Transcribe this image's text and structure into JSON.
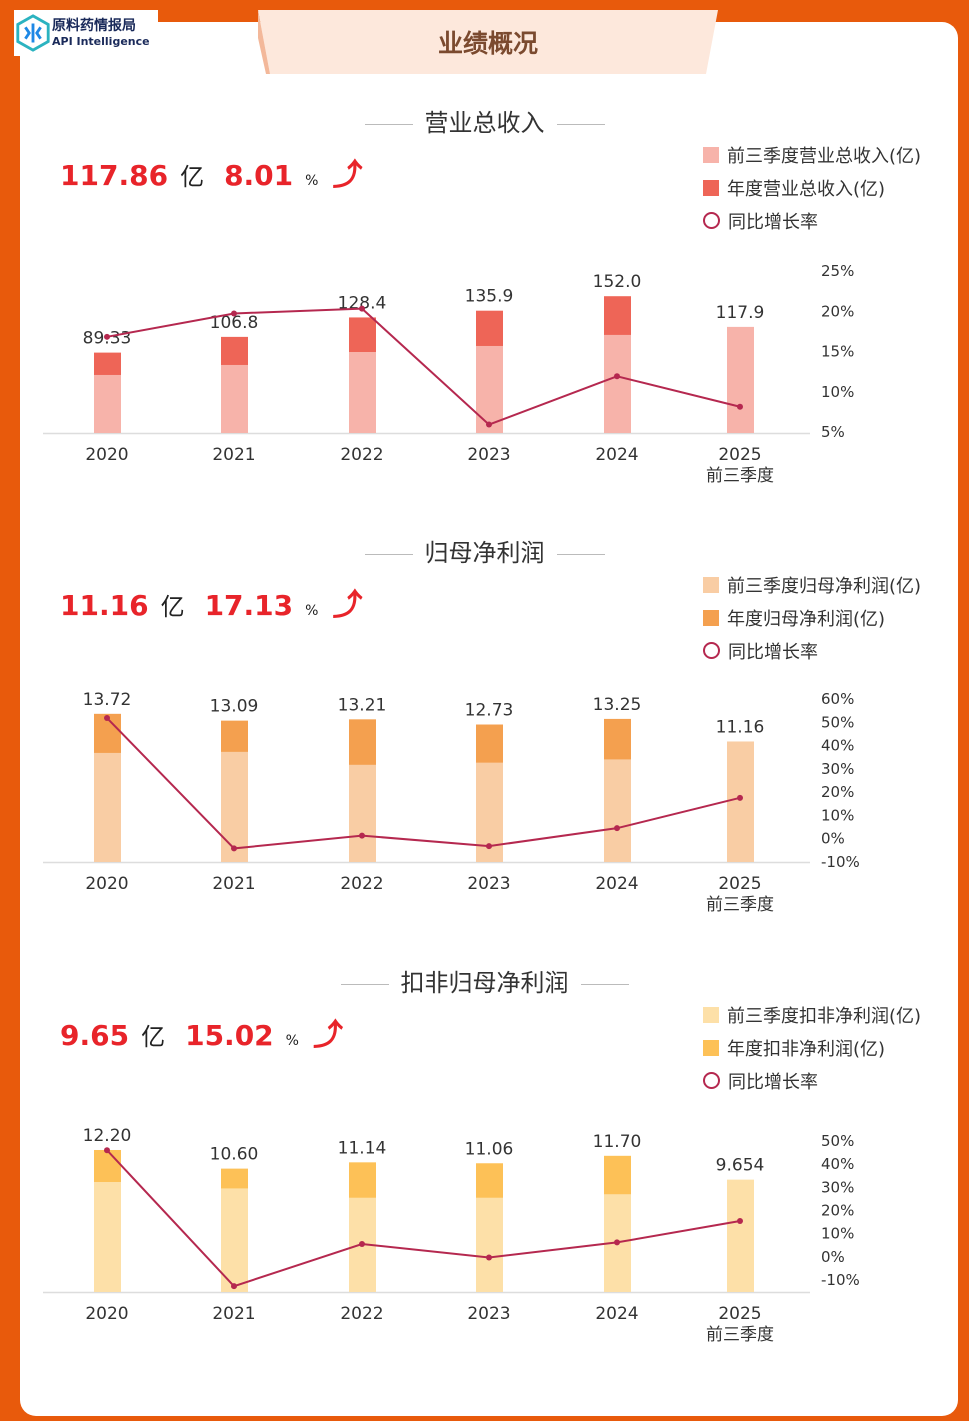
{
  "logo": {
    "name_cn": "原料药情报局",
    "name_en": "API Intelligence"
  },
  "header": {
    "title": "业绩概况"
  },
  "colors": {
    "line": "#b5284f",
    "highlight": "#e8242a"
  },
  "sections": [
    {
      "title": "营业总收入",
      "value": "117.86",
      "value_unit": "亿",
      "growth": "8.01",
      "growth_unit": "%",
      "trend_icon": "arrow-up-icon",
      "legend": [
        "前三季度营业总收入(亿)",
        "年度营业总收入(亿)",
        "同比增长率"
      ]
    },
    {
      "title": "归母净利润",
      "value": "11.16",
      "value_unit": "亿",
      "growth": "17.13",
      "growth_unit": "%",
      "trend_icon": "arrow-up-icon",
      "legend": [
        "前三季度归母净利润(亿)",
        "年度归母净利润(亿)",
        "同比增长率"
      ]
    },
    {
      "title": "扣非归母净利润",
      "value": "9.65",
      "value_unit": "亿",
      "growth": "15.02",
      "growth_unit": "%",
      "trend_icon": "arrow-up-icon",
      "legend": [
        "前三季度扣非净利润(亿)",
        "年度扣非净利润(亿)",
        "同比增长率"
      ]
    }
  ],
  "chart_data": [
    {
      "type": "bar",
      "categories": [
        "2020",
        "2021",
        "2022",
        "2023",
        "2024",
        "2025"
      ],
      "category_sublabels": [
        "",
        "",
        "",
        "",
        "",
        "前三季度"
      ],
      "colors": {
        "q3": "#f7b3aa",
        "annual": "#ee6557"
      },
      "series": [
        {
          "name": "前三季度营业总收入(亿)",
          "values": [
            64.5,
            75.6,
            90.0,
            96.7,
            109.0,
            117.9
          ]
        },
        {
          "name": "年度营业总收入(亿)",
          "values": [
            89.33,
            106.8,
            128.4,
            135.9,
            152.0,
            null
          ]
        },
        {
          "name": "同比增长率",
          "type": "line",
          "axis": "right",
          "values": [
            16.7,
            19.6,
            20.2,
            5.8,
            11.8,
            8.01
          ]
        }
      ],
      "data_labels": [
        "89.33",
        "106.8",
        "128.4",
        "135.9",
        "152.0",
        "117.9"
      ],
      "y2lim": [
        5,
        25
      ],
      "y2ticks": [
        "5%",
        "10%",
        "15%",
        "20%",
        "25%"
      ],
      "grid": false
    },
    {
      "type": "bar",
      "categories": [
        "2020",
        "2021",
        "2022",
        "2023",
        "2024",
        "2025"
      ],
      "category_sublabels": [
        "",
        "",
        "",
        "",
        "",
        "前三季度"
      ],
      "colors": {
        "q3": "#f9cda4",
        "annual": "#f4a04f"
      },
      "series": [
        {
          "name": "前三季度归母净利润(亿)",
          "values": [
            10.1,
            10.2,
            9.0,
            9.2,
            9.5,
            11.16
          ]
        },
        {
          "name": "年度归母净利润(亿)",
          "values": [
            13.72,
            13.09,
            13.21,
            12.73,
            13.25,
            null
          ]
        },
        {
          "name": "同比增长率",
          "type": "line",
          "axis": "right",
          "values": [
            51.4,
            -4.6,
            0.9,
            -3.6,
            4.1,
            17.13
          ]
        }
      ],
      "data_labels": [
        "13.72",
        "13.09",
        "13.21",
        "12.73",
        "13.25",
        "11.16"
      ],
      "y2lim": [
        -10,
        60
      ],
      "y2ticks": [
        "-10%",
        "0%",
        "10%",
        "20%",
        "30%",
        "40%",
        "50%",
        "60%"
      ],
      "grid": false
    },
    {
      "type": "bar",
      "categories": [
        "2020",
        "2021",
        "2022",
        "2023",
        "2024",
        "2025"
      ],
      "category_sublabels": [
        "",
        "",
        "",
        "",
        "",
        "前三季度"
      ],
      "colors": {
        "q3": "#fde0a8",
        "annual": "#fdc157"
      },
      "series": [
        {
          "name": "前三季度扣非净利润(亿)",
          "values": [
            9.45,
            8.9,
            8.1,
            8.1,
            8.4,
            9.654
          ]
        },
        {
          "name": "年度扣非净利润(亿)",
          "values": [
            12.2,
            10.6,
            11.14,
            11.06,
            11.7,
            null
          ]
        },
        {
          "name": "同比增长率",
          "type": "line",
          "axis": "right",
          "values": [
            45.6,
            -13.1,
            5.1,
            -0.7,
            5.8,
            15.02
          ]
        }
      ],
      "data_labels": [
        "12.20",
        "10.60",
        "11.14",
        "11.06",
        "11.70",
        "9.654"
      ],
      "y2lim": [
        -10,
        50
      ],
      "y2ticks": [
        "-10%",
        "0%",
        "10%",
        "20%",
        "30%",
        "40%",
        "50%"
      ],
      "grid": false
    }
  ]
}
